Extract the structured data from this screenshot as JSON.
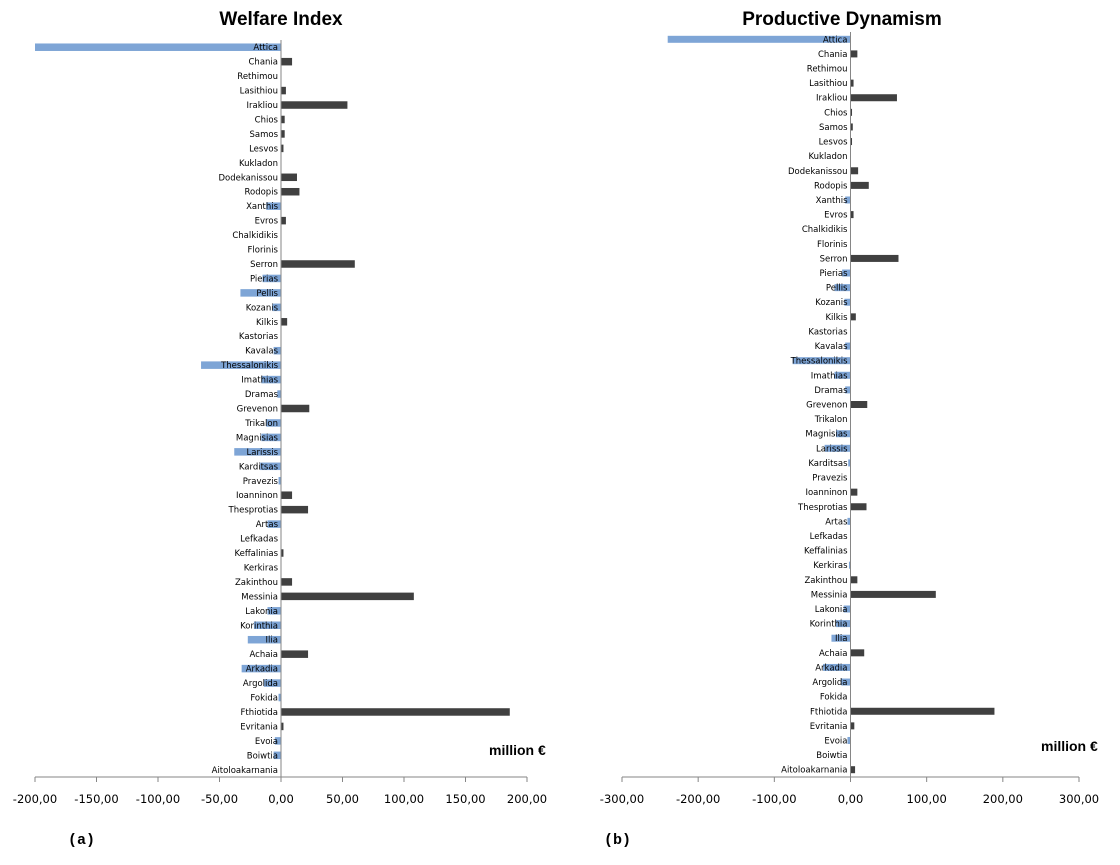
{
  "panels": [
    {
      "label": "(a)",
      "unit": "million €"
    },
    {
      "label": "(b)",
      "unit": "million €"
    }
  ],
  "colors": {
    "positive": "#404040",
    "negative": "#7ea5d6",
    "axis": "#868686"
  },
  "chart_data": [
    {
      "type": "bar",
      "orientation": "horizontal",
      "title": "Welfare Index",
      "xlabel": "million €",
      "xlim": [
        -200,
        200
      ],
      "xticks": [
        -200,
        -150,
        -100,
        -50,
        0,
        50,
        100,
        150,
        200
      ],
      "xtick_labels": [
        "-200,00",
        "-150,00",
        "-100,00",
        "-50,00",
        "0,00",
        "50,00",
        "100,00",
        "150,00",
        "200,00"
      ],
      "grid": false,
      "categories": [
        "Attica",
        "Chania",
        "Rethimou",
        "Lasithiou",
        "Irakliou",
        "Chios",
        "Samos",
        "Lesvos",
        "Kukladon",
        "Dodekanissou",
        "Rodopis",
        "Xanthis",
        "Evros",
        "Chalkidikis",
        "Florinis",
        "Serron",
        "Pierias",
        "Pellis",
        "Kozanis",
        "Kilkis",
        "Kastorias",
        "Kavalas",
        "Thessalonikis",
        "Imathias",
        "Dramas",
        "Grevenon",
        "Trikalon",
        "Magnisias",
        "Larissis",
        "Karditsas",
        "Pravezis",
        "Ioanninon",
        "Thesprotias",
        "Artas",
        "Lefkadas",
        "Keffalinias",
        "Kerkiras",
        "Zakinthou",
        "Messinia",
        "Lakonia",
        "Korinthia",
        "Ilia",
        "Achaia",
        "Arkadia",
        "Argolida",
        "Fokida",
        "Fthiotida",
        "Evritania",
        "Evoia",
        "Boiwtia",
        "Aitoloakarnania"
      ],
      "values": [
        -200,
        9,
        0,
        4,
        54,
        3,
        3,
        2,
        0,
        13,
        15,
        -12,
        4,
        0,
        0,
        60,
        -15,
        -33,
        -7,
        5,
        0,
        -6,
        -65,
        -16,
        -3,
        23,
        -12,
        -16,
        -38,
        -17,
        -2,
        9,
        22,
        -11,
        0,
        2,
        0,
        9,
        108,
        -11,
        -22,
        -27,
        22,
        -32,
        -14,
        -2,
        186,
        2,
        -5,
        -6,
        0
      ]
    },
    {
      "type": "bar",
      "orientation": "horizontal",
      "title": "Productive Dynamism",
      "xlabel": "million €",
      "xlim": [
        -300,
        300
      ],
      "xticks": [
        -300,
        -200,
        -100,
        0,
        100,
        200,
        300
      ],
      "xtick_labels": [
        "-300,00",
        "-200,00",
        "-100,00",
        "0,00",
        "100,00",
        "200,00",
        "300,00"
      ],
      "grid": false,
      "categories": [
        "Attica",
        "Chania",
        "Rethimou",
        "Lasithiou",
        "Irakliou",
        "Chios",
        "Samos",
        "Lesvos",
        "Kukladon",
        "Dodekanissou",
        "Rodopis",
        "Xanthis",
        "Evros",
        "Chalkidikis",
        "Florinis",
        "Serron",
        "Pierias",
        "Pellis",
        "Kozanis",
        "Kilkis",
        "Kastorias",
        "Kavalas",
        "Thessalonikis",
        "Imathias",
        "Dramas",
        "Grevenon",
        "Trikalon",
        "Magnisias",
        "Larissis",
        "Karditsas",
        "Pravezis",
        "Ioanninon",
        "Thesprotias",
        "Artas",
        "Lefkadas",
        "Keffalinias",
        "Kerkiras",
        "Zakinthou",
        "Messinia",
        "Lakonia",
        "Korinthia",
        "Ilia",
        "Achaia",
        "Arkadia",
        "Argolida",
        "Fokida",
        "Fthiotida",
        "Evritania",
        "Evoia",
        "Boiwtia",
        "Aitoloakarnania"
      ],
      "values": [
        -240,
        9,
        0,
        4,
        61,
        2,
        3,
        2,
        0,
        10,
        24,
        -7,
        4,
        0,
        0,
        63,
        -11,
        -21,
        -8,
        7,
        0,
        -7,
        -76,
        -21,
        -7,
        22,
        0,
        -19,
        -34,
        -3,
        0,
        9,
        21,
        -4,
        0,
        0,
        -2,
        9,
        112,
        -9,
        -19,
        -25,
        18,
        -36,
        -12,
        0,
        189,
        5,
        -4,
        0,
        6
      ]
    }
  ]
}
